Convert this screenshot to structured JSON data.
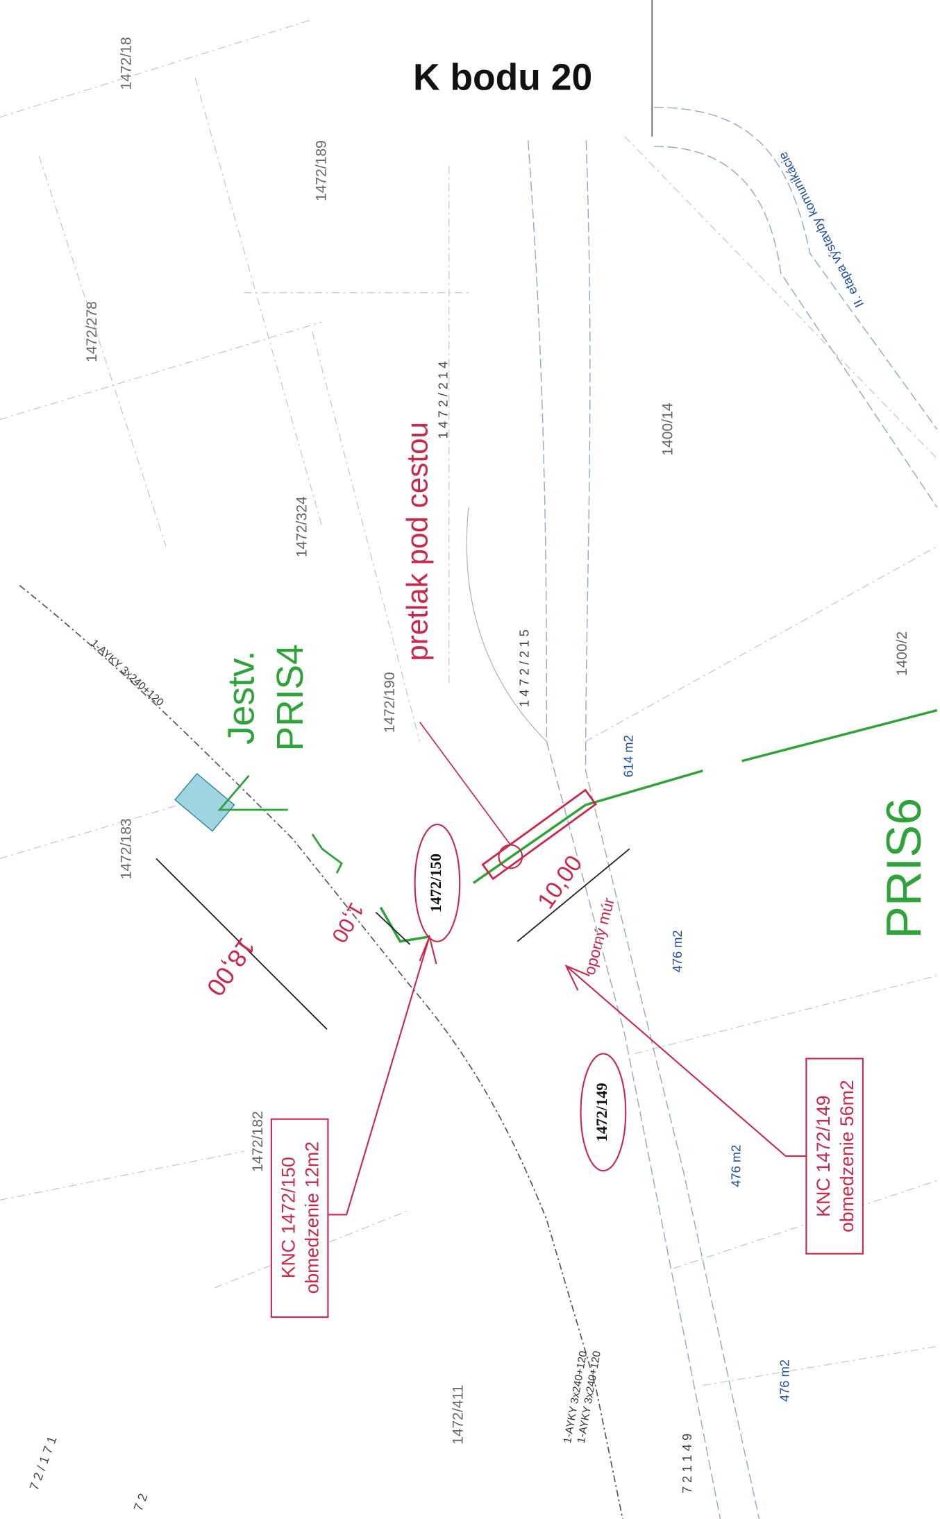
{
  "header": {
    "title": "K bodu 20"
  },
  "parcels": [
    "1472/18",
    "1472/189",
    "1472/278",
    "1472/324",
    "1472/190",
    "1400/14",
    "1400/2",
    "1472/183",
    "1472/182",
    "1472/411"
  ],
  "highlighted_parcels": [
    "1472/150",
    "1472/149"
  ],
  "areas": [
    "614 m2",
    "476 m2",
    "476 m2",
    "476 m2"
  ],
  "road_label": "II. etapa výstavby komunikácie",
  "annotations": {
    "crossing": "pretlak pod cestou",
    "existing": "Jestv.",
    "pris4": "PRIS4",
    "pris6": "PRIS6",
    "wall": "oporný múr"
  },
  "dimensions": [
    "18,00",
    "1,00",
    "10,00"
  ],
  "cables": [
    "1-AYKY 3x240+120",
    "1-AYKY 3x240+120",
    "1-AYKY 3x240+120"
  ],
  "notes": [
    {
      "title": "KNC 1472/150",
      "text": "obmedzenie 12m2"
    },
    {
      "title": "KNC 1472/149",
      "text": "obmedzenie 56m2"
    }
  ],
  "point_numbers": [
    "1 4 7 2 / 2 1 4",
    "1 4 7 2 / 2 1 5",
    "7 2 / 1 7 1",
    "7 2 1 1 4 9",
    "7 2"
  ]
}
